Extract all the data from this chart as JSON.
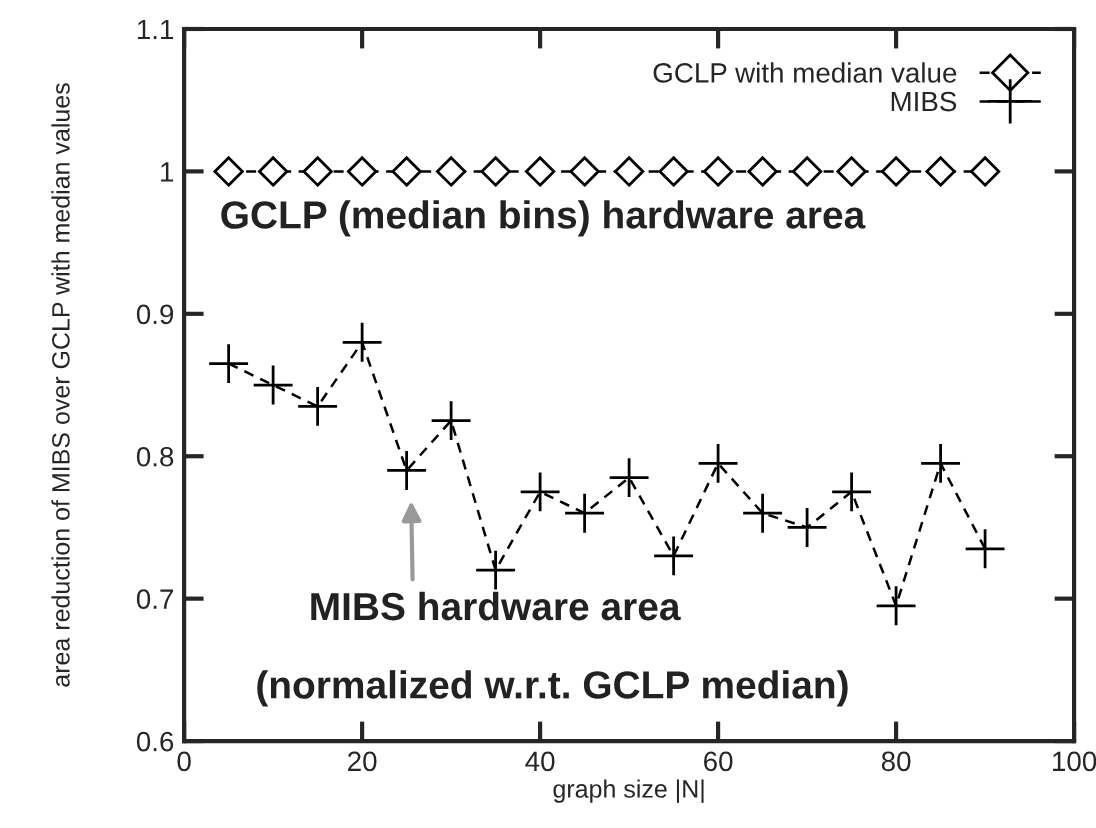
{
  "chart_data": {
    "type": "line",
    "xlabel": "graph size |N|",
    "ylabel": "area reduction of MIBS over GCLP with median values",
    "x": [
      5,
      10,
      15,
      20,
      25,
      30,
      35,
      40,
      45,
      50,
      55,
      60,
      65,
      70,
      75,
      80,
      85,
      90
    ],
    "series": [
      {
        "name": "GCLP with median value",
        "color": "#000000",
        "marker": "diamond",
        "line_style": "dashed",
        "values": [
          1,
          1,
          1,
          1,
          1,
          1,
          1,
          1,
          1,
          1,
          1,
          1,
          1,
          1,
          1,
          1,
          1,
          1
        ]
      },
      {
        "name": "MIBS",
        "color": "#000000",
        "marker": "cross",
        "line_style": "dashed",
        "values": [
          0.865,
          0.85,
          0.835,
          0.88,
          0.79,
          0.825,
          0.72,
          0.775,
          0.76,
          0.785,
          0.73,
          0.795,
          0.76,
          0.75,
          0.775,
          0.695,
          0.795,
          0.735
        ]
      }
    ],
    "xlim": [
      0,
      100
    ],
    "xticks": [
      0,
      20,
      40,
      60,
      80,
      100
    ],
    "ylim": [
      0.6,
      1.1
    ],
    "yticks": [
      0.6,
      0.7,
      0.8,
      0.9,
      1,
      1.1
    ],
    "legend": "top right",
    "grid": false,
    "annotations": [
      "GCLP (median bins) hardware area",
      "MIBS hardware area",
      "(normalized w.r.t. GCLP median)"
    ]
  }
}
